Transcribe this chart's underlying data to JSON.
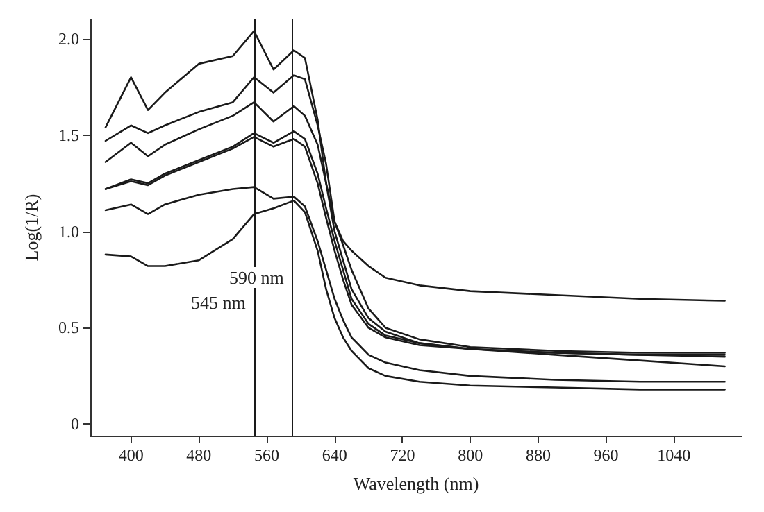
{
  "chart_data": {
    "type": "line",
    "xlabel": "Wavelength (nm)",
    "ylabel": "Log(1/R)",
    "x": [
      370,
      400,
      420,
      440,
      480,
      520,
      545,
      568,
      592,
      605,
      620,
      630,
      640,
      650,
      660,
      680,
      700,
      740,
      800,
      900,
      1000,
      1100
    ],
    "series": [
      {
        "color": "#1a1a1a",
        "values": [
          1.54,
          1.8,
          1.63,
          1.72,
          1.87,
          1.91,
          2.04,
          1.84,
          1.94,
          1.9,
          1.58,
          1.25,
          1.05,
          0.95,
          0.9,
          0.82,
          0.76,
          0.72,
          0.69,
          0.67,
          0.65,
          0.64
        ]
      },
      {
        "color": "#1a1a1a",
        "values": [
          1.47,
          1.55,
          1.51,
          1.55,
          1.62,
          1.67,
          1.8,
          1.72,
          1.81,
          1.79,
          1.55,
          1.35,
          1.05,
          0.93,
          0.8,
          0.6,
          0.5,
          0.44,
          0.4,
          0.38,
          0.37,
          0.37
        ]
      },
      {
        "color": "#1a1a1a",
        "values": [
          1.36,
          1.46,
          1.39,
          1.45,
          1.53,
          1.6,
          1.67,
          1.57,
          1.65,
          1.6,
          1.45,
          1.25,
          1.0,
          0.85,
          0.7,
          0.55,
          0.48,
          0.42,
          0.39,
          0.37,
          0.36,
          0.36
        ]
      },
      {
        "color": "#1a1a1a",
        "values": [
          1.22,
          1.27,
          1.25,
          1.3,
          1.37,
          1.44,
          1.51,
          1.46,
          1.52,
          1.48,
          1.3,
          1.12,
          0.95,
          0.8,
          0.65,
          0.52,
          0.46,
          0.42,
          0.39,
          0.36,
          0.33,
          0.3
        ]
      },
      {
        "color": "#1a1a1a",
        "values": [
          1.22,
          1.26,
          1.24,
          1.29,
          1.36,
          1.43,
          1.49,
          1.44,
          1.48,
          1.44,
          1.25,
          1.07,
          0.9,
          0.75,
          0.62,
          0.5,
          0.45,
          0.41,
          0.39,
          0.37,
          0.36,
          0.35
        ]
      },
      {
        "color": "#1a1a1a",
        "values": [
          1.11,
          1.14,
          1.09,
          1.14,
          1.19,
          1.22,
          1.23,
          1.17,
          1.18,
          1.13,
          0.95,
          0.8,
          0.65,
          0.54,
          0.45,
          0.36,
          0.32,
          0.28,
          0.25,
          0.23,
          0.22,
          0.22
        ]
      },
      {
        "color": "#1a1a1a",
        "values": [
          0.88,
          0.87,
          0.82,
          0.82,
          0.85,
          0.96,
          1.09,
          1.12,
          1.16,
          1.1,
          0.9,
          0.7,
          0.55,
          0.45,
          0.38,
          0.29,
          0.25,
          0.22,
          0.2,
          0.19,
          0.18,
          0.18
        ]
      }
    ],
    "xlim": [
      352,
      1120
    ],
    "xticks": [
      400,
      480,
      560,
      640,
      720,
      800,
      880,
      960,
      1040
    ],
    "ylim": [
      -0.06,
      2.1
    ],
    "yticks": [
      0,
      {
        "value": 0.5,
        "label": "0.5"
      },
      {
        "value": 1,
        "label": "1.0"
      },
      {
        "value": 1.5,
        "label": "1.5"
      },
      {
        "value": 2,
        "label": "2.0"
      }
    ],
    "ref_lines": [
      {
        "axis": "x",
        "value": 545,
        "label": "545 nm",
        "color": "#1a1a1a"
      },
      {
        "axis": "x",
        "value": 590,
        "label": "590 nm",
        "color": "#1a1a1a"
      }
    ],
    "grid": false,
    "marker": "none",
    "line_style": "solid"
  }
}
